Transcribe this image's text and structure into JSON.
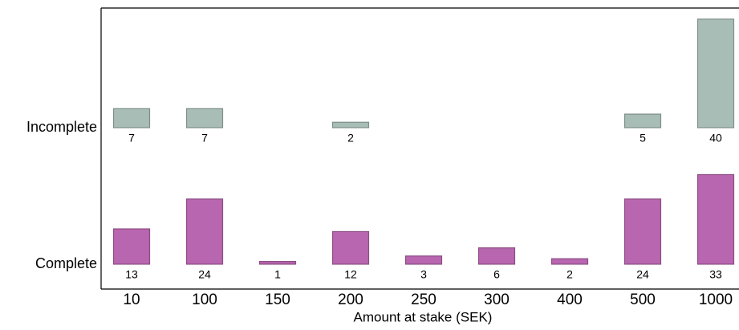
{
  "chart_data": {
    "type": "bar",
    "x_label": "Amount at stake (SEK)",
    "categories": [
      "10",
      "100",
      "150",
      "200",
      "250",
      "300",
      "400",
      "500",
      "1000"
    ],
    "series": [
      {
        "name": "Incomplete",
        "color": "#a8bdb5",
        "values": [
          7,
          7,
          null,
          2,
          null,
          null,
          null,
          5,
          40
        ]
      },
      {
        "name": "Complete",
        "color": "#b966b0",
        "values": [
          13,
          24,
          1,
          12,
          3,
          6,
          2,
          24,
          33
        ]
      }
    ]
  }
}
